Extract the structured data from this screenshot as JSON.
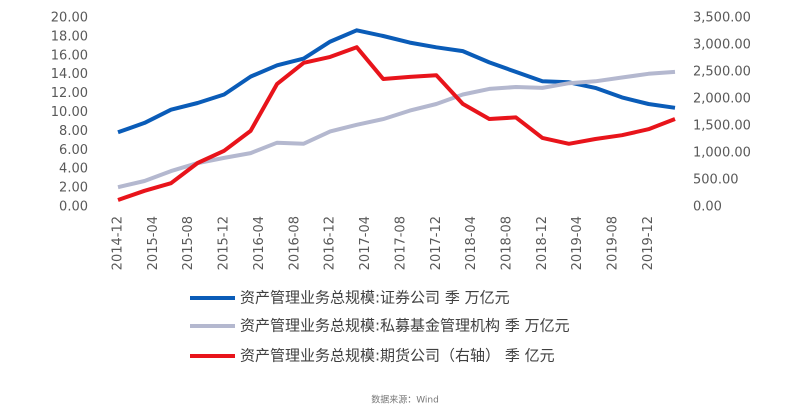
{
  "chart_data": {
    "type": "line",
    "x": [
      "2014-12",
      "2015-03",
      "2015-06",
      "2015-09",
      "2015-12",
      "2016-03",
      "2016-06",
      "2016-09",
      "2016-12",
      "2017-03",
      "2017-06",
      "2017-09",
      "2017-12",
      "2018-03",
      "2018-06",
      "2018-09",
      "2018-12",
      "2019-03",
      "2019-06",
      "2019-09",
      "2019-12",
      "2020-03"
    ],
    "xlim": [
      "2014-12",
      "2020-03"
    ],
    "xticks": [
      "2014-12",
      "2015-04",
      "2015-08",
      "2015-12",
      "2016-04",
      "2016-08",
      "2016-12",
      "2017-04",
      "2017-08",
      "2017-12",
      "2018-04",
      "2018-08",
      "2018-12",
      "2019-04",
      "2019-08",
      "2019-12"
    ],
    "ylim": [
      0,
      20
    ],
    "yticks": [
      {
        "value": 0,
        "label": "0.00"
      },
      {
        "value": 2,
        "label": "2.00"
      },
      {
        "value": 4,
        "label": "4.00"
      },
      {
        "value": 6,
        "label": "6.00"
      },
      {
        "value": 8,
        "label": "8.00"
      },
      {
        "value": 10,
        "label": "10.00"
      },
      {
        "value": 12,
        "label": "12.00"
      },
      {
        "value": 14,
        "label": "14.00"
      },
      {
        "value": 16,
        "label": "16.00"
      },
      {
        "value": 18,
        "label": "18.00"
      },
      {
        "value": 20,
        "label": "20.00"
      }
    ],
    "y2lim": [
      0,
      3500
    ],
    "y2ticks": [
      {
        "value": 0,
        "label": "0.00"
      },
      {
        "value": 500,
        "label": "500.00"
      },
      {
        "value": 1000,
        "label": "1,000.00"
      },
      {
        "value": 1500,
        "label": "1,500.00"
      },
      {
        "value": 2000,
        "label": "2,000.00"
      },
      {
        "value": 2500,
        "label": "2,500.00"
      },
      {
        "value": 3000,
        "label": "3,000.00"
      },
      {
        "value": 3500,
        "label": "3,500.00"
      }
    ],
    "grid": false,
    "legend": "bottom",
    "series": [
      {
        "name": "资产管理业务总规模:证券公司 季 万亿元",
        "color": "#0a5cb8",
        "axis": "y",
        "values": [
          7.9,
          8.9,
          10.3,
          11.0,
          11.9,
          13.8,
          15.0,
          15.7,
          17.5,
          18.7,
          18.1,
          17.4,
          16.9,
          16.5,
          15.3,
          14.3,
          13.3,
          13.2,
          12.6,
          11.6,
          10.9,
          10.5
        ]
      },
      {
        "name": "资产管理业务总规模:私募基金管理机构 季 万亿元",
        "color": "#b4b8cf",
        "axis": "y",
        "values": [
          2.1,
          2.75,
          3.8,
          4.65,
          5.2,
          5.7,
          6.8,
          6.7,
          8.0,
          8.7,
          9.3,
          10.2,
          10.9,
          11.9,
          12.5,
          12.7,
          12.6,
          13.1,
          13.3,
          13.7,
          14.1,
          14.3
        ]
      },
      {
        "name": "资产管理业务总规模:期货公司（右轴） 季 亿元",
        "color": "#e8141b",
        "axis": "y2",
        "values": [
          130,
          300,
          440,
          815,
          1040,
          1410,
          2280,
          2670,
          2780,
          2960,
          2370,
          2410,
          2440,
          1910,
          1630,
          1660,
          1280,
          1170,
          1260,
          1330,
          1440,
          1630
        ]
      }
    ],
    "source": "数据来源：Wind"
  }
}
